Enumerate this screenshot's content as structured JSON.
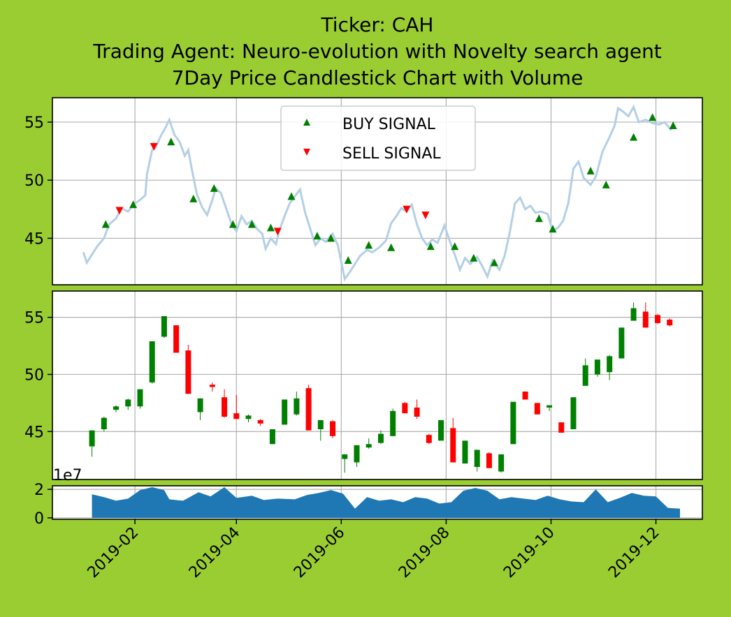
{
  "chart_data": {
    "type": "candlestick",
    "title": [
      "Ticker: CAH",
      "Trading Agent: Neuro-evolution with Novelty search agent",
      "7Day Price Candlestick Chart with Volume"
    ],
    "colors": {
      "background": "#9acd32",
      "price_line": "#b3cfe6",
      "buy": "#008000",
      "sell": "#ff0000",
      "up": "#008000",
      "down": "#ff0000",
      "volume": "#1f77b4"
    },
    "x_axis": {
      "range": [
        "2018-12-15",
        "2019-12-28"
      ],
      "ticks": [
        {
          "date": "2019-02-01",
          "label": "2019-02"
        },
        {
          "date": "2019-04-01",
          "label": "2019-04"
        },
        {
          "date": "2019-06-01",
          "label": "2019-06"
        },
        {
          "date": "2019-08-01",
          "label": "2019-08"
        },
        {
          "date": "2019-10-01",
          "label": "2019-10"
        },
        {
          "date": "2019-12-01",
          "label": "2019-12"
        }
      ]
    },
    "price_panel": {
      "ylim": [
        41,
        57.1
      ],
      "yticks": [
        45,
        50,
        55
      ],
      "legend": {
        "buy": "BUY SIGNAL",
        "sell": "SELL SIGNAL",
        "position": "upper center"
      },
      "line": [
        [
          "2019-01-02",
          43.8
        ],
        [
          "2019-01-04",
          42.9
        ],
        [
          "2019-01-07",
          43.6
        ],
        [
          "2019-01-10",
          44.3
        ],
        [
          "2019-01-14",
          45.0
        ],
        [
          "2019-01-17",
          46.2
        ],
        [
          "2019-01-21",
          46.7
        ],
        [
          "2019-01-24",
          47.6
        ],
        [
          "2019-01-28",
          47.3
        ],
        [
          "2019-01-31",
          47.9
        ],
        [
          "2019-02-04",
          48.3
        ],
        [
          "2019-02-07",
          48.7
        ],
        [
          "2019-02-08",
          50.5
        ],
        [
          "2019-02-11",
          52.6
        ],
        [
          "2019-02-13",
          52.8
        ],
        [
          "2019-02-16",
          53.8
        ],
        [
          "2019-02-19",
          54.6
        ],
        [
          "2019-02-21",
          55.2
        ],
        [
          "2019-02-24",
          53.9
        ],
        [
          "2019-02-27",
          53.3
        ],
        [
          "2019-03-02",
          52.1
        ],
        [
          "2019-03-04",
          52.6
        ],
        [
          "2019-03-06",
          51.0
        ],
        [
          "2019-03-09",
          48.8
        ],
        [
          "2019-03-12",
          47.7
        ],
        [
          "2019-03-15",
          47.0
        ],
        [
          "2019-03-18",
          48.3
        ],
        [
          "2019-03-20",
          49.3
        ],
        [
          "2019-03-23",
          48.9
        ],
        [
          "2019-03-26",
          47.6
        ],
        [
          "2019-03-29",
          46.3
        ],
        [
          "2019-04-01",
          45.6
        ],
        [
          "2019-04-04",
          46.9
        ],
        [
          "2019-04-07",
          46.2
        ],
        [
          "2019-04-10",
          46.5
        ],
        [
          "2019-04-13",
          45.8
        ],
        [
          "2019-04-16",
          45.4
        ],
        [
          "2019-04-18",
          44.1
        ],
        [
          "2019-04-21",
          45.0
        ],
        [
          "2019-04-24",
          44.5
        ],
        [
          "2019-04-26",
          45.7
        ],
        [
          "2019-04-29",
          46.9
        ],
        [
          "2019-05-02",
          48.0
        ],
        [
          "2019-05-05",
          48.6
        ],
        [
          "2019-05-08",
          49.2
        ],
        [
          "2019-05-11",
          47.2
        ],
        [
          "2019-05-14",
          45.8
        ],
        [
          "2019-05-17",
          44.4
        ],
        [
          "2019-05-20",
          45.0
        ],
        [
          "2019-05-23",
          44.7
        ],
        [
          "2019-05-27",
          45.4
        ],
        [
          "2019-05-30",
          44.4
        ],
        [
          "2019-06-03",
          41.5
        ],
        [
          "2019-06-06",
          42.1
        ],
        [
          "2019-06-09",
          42.8
        ],
        [
          "2019-06-12",
          43.5
        ],
        [
          "2019-06-16",
          44.0
        ],
        [
          "2019-06-19",
          43.8
        ],
        [
          "2019-06-23",
          44.2
        ],
        [
          "2019-06-27",
          44.8
        ],
        [
          "2019-06-30",
          46.3
        ],
        [
          "2019-07-03",
          46.9
        ],
        [
          "2019-07-06",
          47.6
        ],
        [
          "2019-07-09",
          47.3
        ],
        [
          "2019-07-12",
          47.9
        ],
        [
          "2019-07-15",
          46.2
        ],
        [
          "2019-07-18",
          45.0
        ],
        [
          "2019-07-21",
          44.4
        ],
        [
          "2019-07-24",
          44.9
        ],
        [
          "2019-07-27",
          44.6
        ],
        [
          "2019-07-31",
          46.1
        ],
        [
          "2019-08-03",
          44.8
        ],
        [
          "2019-08-06",
          43.6
        ],
        [
          "2019-08-09",
          42.3
        ],
        [
          "2019-08-12",
          43.3
        ],
        [
          "2019-08-15",
          42.8
        ],
        [
          "2019-08-19",
          43.4
        ],
        [
          "2019-08-22",
          42.6
        ],
        [
          "2019-08-25",
          41.7
        ],
        [
          "2019-08-28",
          43.1
        ],
        [
          "2019-09-01",
          42.3
        ],
        [
          "2019-09-04",
          43.5
        ],
        [
          "2019-09-07",
          45.5
        ],
        [
          "2019-09-10",
          48.0
        ],
        [
          "2019-09-13",
          48.5
        ],
        [
          "2019-09-16",
          47.5
        ],
        [
          "2019-09-19",
          47.8
        ],
        [
          "2019-09-22",
          47.2
        ],
        [
          "2019-09-25",
          47.3
        ],
        [
          "2019-09-29",
          47.1
        ],
        [
          "2019-10-02",
          45.6
        ],
        [
          "2019-10-05",
          45.9
        ],
        [
          "2019-10-08",
          46.5
        ],
        [
          "2019-10-11",
          48.0
        ],
        [
          "2019-10-14",
          51.0
        ],
        [
          "2019-10-17",
          51.6
        ],
        [
          "2019-10-20",
          50.2
        ],
        [
          "2019-10-24",
          49.6
        ],
        [
          "2019-10-27",
          50.3
        ],
        [
          "2019-10-31",
          52.5
        ],
        [
          "2019-11-04",
          53.7
        ],
        [
          "2019-11-07",
          54.7
        ],
        [
          "2019-11-09",
          56.2
        ],
        [
          "2019-11-12",
          55.9
        ],
        [
          "2019-11-15",
          55.5
        ],
        [
          "2019-11-18",
          56.3
        ],
        [
          "2019-11-21",
          55.0
        ],
        [
          "2019-11-25",
          55.2
        ],
        [
          "2019-11-29",
          54.9
        ],
        [
          "2019-12-03",
          54.8
        ],
        [
          "2019-12-06",
          55.0
        ],
        [
          "2019-12-10",
          54.3
        ]
      ],
      "buy_signals": [
        [
          "2019-01-15",
          46.2
        ],
        [
          "2019-01-31",
          47.9
        ],
        [
          "2019-02-22",
          53.3
        ],
        [
          "2019-03-07",
          48.4
        ],
        [
          "2019-03-19",
          49.3
        ],
        [
          "2019-03-30",
          46.2
        ],
        [
          "2019-04-10",
          46.2
        ],
        [
          "2019-04-21",
          45.9
        ],
        [
          "2019-05-03",
          48.6
        ],
        [
          "2019-05-18",
          45.2
        ],
        [
          "2019-05-26",
          45.0
        ],
        [
          "2019-06-05",
          43.1
        ],
        [
          "2019-06-17",
          44.4
        ],
        [
          "2019-06-30",
          44.2
        ],
        [
          "2019-07-23",
          44.3
        ],
        [
          "2019-08-06",
          44.3
        ],
        [
          "2019-08-17",
          43.3
        ],
        [
          "2019-08-29",
          42.9
        ],
        [
          "2019-09-24",
          46.7
        ],
        [
          "2019-10-02",
          45.8
        ],
        [
          "2019-10-24",
          50.8
        ],
        [
          "2019-11-02",
          49.6
        ],
        [
          "2019-11-18",
          53.7
        ],
        [
          "2019-11-29",
          55.4
        ],
        [
          "2019-12-11",
          54.7
        ]
      ],
      "sell_signals": [
        [
          "2019-01-23",
          47.4
        ],
        [
          "2019-02-12",
          52.9
        ],
        [
          "2019-04-25",
          45.6
        ],
        [
          "2019-07-09",
          47.5
        ],
        [
          "2019-07-20",
          47.0
        ]
      ]
    },
    "candle_panel": {
      "ylim": [
        40.8,
        57.3
      ],
      "yticks": [
        45,
        50,
        55
      ],
      "candles": [
        [
          "2019-01-07",
          43.7,
          45.1,
          42.8,
          45.1
        ],
        [
          "2019-01-14",
          45.2,
          46.3,
          45.0,
          46.2
        ],
        [
          "2019-01-21",
          46.9,
          47.3,
          46.7,
          47.2
        ],
        [
          "2019-01-28",
          47.2,
          47.9,
          46.9,
          47.8
        ],
        [
          "2019-02-04",
          47.2,
          48.7,
          47.0,
          48.7
        ],
        [
          "2019-02-11",
          49.3,
          52.9,
          49.2,
          52.9
        ],
        [
          "2019-02-18",
          53.3,
          55.1,
          53.2,
          55.1
        ],
        [
          "2019-02-25",
          54.3,
          54.3,
          51.9,
          51.9
        ],
        [
          "2019-03-04",
          52.1,
          52.6,
          48.3,
          48.3
        ],
        [
          "2019-03-11",
          46.7,
          47.9,
          46.0,
          47.9
        ],
        [
          "2019-03-18",
          49.1,
          49.3,
          48.5,
          48.9
        ],
        [
          "2019-03-25",
          48.0,
          48.7,
          46.2,
          46.3
        ],
        [
          "2019-04-01",
          46.6,
          48.2,
          46.1,
          46.1
        ],
        [
          "2019-04-08",
          46.1,
          46.5,
          45.8,
          46.4
        ],
        [
          "2019-04-15",
          46.0,
          46.1,
          45.5,
          45.7
        ],
        [
          "2019-04-22",
          43.9,
          45.2,
          43.9,
          45.2
        ],
        [
          "2019-04-29",
          45.6,
          47.8,
          45.6,
          47.8
        ],
        [
          "2019-05-06",
          46.5,
          48.5,
          46.4,
          47.9
        ],
        [
          "2019-05-13",
          48.8,
          49.1,
          45.1,
          45.1
        ],
        [
          "2019-05-20",
          45.2,
          46.0,
          44.2,
          46.0
        ],
        [
          "2019-05-27",
          45.9,
          46.0,
          44.4,
          44.6
        ],
        [
          "2019-06-03",
          42.6,
          43.0,
          41.4,
          43.0
        ],
        [
          "2019-06-10",
          42.3,
          43.8,
          41.9,
          43.8
        ],
        [
          "2019-06-17",
          43.6,
          44.4,
          43.5,
          43.9
        ],
        [
          "2019-06-24",
          44.0,
          45.1,
          43.9,
          44.8
        ],
        [
          "2019-07-01",
          44.6,
          47.0,
          44.6,
          46.8
        ],
        [
          "2019-07-08",
          47.5,
          47.6,
          46.6,
          46.6
        ],
        [
          "2019-07-15",
          47.1,
          47.8,
          46.1,
          46.3
        ],
        [
          "2019-07-22",
          44.7,
          44.8,
          43.9,
          44.0
        ],
        [
          "2019-07-29",
          44.2,
          46.0,
          44.2,
          46.0
        ],
        [
          "2019-08-05",
          45.3,
          46.2,
          42.3,
          42.3
        ],
        [
          "2019-08-12",
          42.2,
          44.2,
          42.2,
          44.2
        ],
        [
          "2019-08-19",
          41.9,
          43.4,
          41.5,
          43.4
        ],
        [
          "2019-08-26",
          43.1,
          43.2,
          41.8,
          41.8
        ],
        [
          "2019-09-02",
          41.5,
          43.0,
          41.4,
          43.0
        ],
        [
          "2019-09-09",
          43.9,
          47.6,
          43.9,
          47.6
        ],
        [
          "2019-09-16",
          48.5,
          48.5,
          47.8,
          47.8
        ],
        [
          "2019-09-23",
          47.5,
          47.5,
          46.5,
          46.5
        ],
        [
          "2019-09-30",
          47.1,
          47.3,
          46.8,
          47.3
        ],
        [
          "2019-10-07",
          45.8,
          45.8,
          44.9,
          44.9
        ],
        [
          "2019-10-14",
          45.2,
          48.0,
          45.2,
          48.0
        ],
        [
          "2019-10-21",
          49.0,
          51.4,
          49.0,
          50.8
        ],
        [
          "2019-10-28",
          50.0,
          51.3,
          49.8,
          51.3
        ],
        [
          "2019-11-04",
          50.2,
          51.7,
          49.5,
          51.6
        ],
        [
          "2019-11-11",
          51.4,
          54.1,
          51.4,
          54.1
        ],
        [
          "2019-11-18",
          54.7,
          56.3,
          54.7,
          55.8
        ],
        [
          "2019-11-25",
          55.5,
          56.3,
          54.1,
          54.1
        ],
        [
          "2019-12-02",
          55.2,
          55.3,
          54.4,
          54.5
        ],
        [
          "2019-12-09",
          54.8,
          54.9,
          54.2,
          54.3
        ]
      ]
    },
    "volume_panel": {
      "exponent_label": "1e7",
      "ylim": [
        -0.1,
        2.25
      ],
      "yticks": [
        0,
        2
      ],
      "series": [
        [
          "2019-01-07",
          1.65
        ],
        [
          "2019-01-14",
          1.45
        ],
        [
          "2019-01-21",
          1.2
        ],
        [
          "2019-01-28",
          1.35
        ],
        [
          "2019-02-04",
          1.95
        ],
        [
          "2019-02-11",
          2.15
        ],
        [
          "2019-02-18",
          1.95
        ],
        [
          "2019-02-21",
          1.3
        ],
        [
          "2019-03-01",
          1.2
        ],
        [
          "2019-03-10",
          1.8
        ],
        [
          "2019-03-17",
          1.5
        ],
        [
          "2019-03-25",
          2.15
        ],
        [
          "2019-04-01",
          1.4
        ],
        [
          "2019-04-10",
          1.55
        ],
        [
          "2019-04-17",
          1.25
        ],
        [
          "2019-04-25",
          1.35
        ],
        [
          "2019-05-05",
          1.3
        ],
        [
          "2019-05-12",
          1.6
        ],
        [
          "2019-05-19",
          1.75
        ],
        [
          "2019-05-26",
          1.95
        ],
        [
          "2019-06-02",
          1.7
        ],
        [
          "2019-06-09",
          0.65
        ],
        [
          "2019-06-16",
          1.45
        ],
        [
          "2019-06-23",
          1.2
        ],
        [
          "2019-06-30",
          1.3
        ],
        [
          "2019-07-07",
          1.1
        ],
        [
          "2019-07-14",
          1.45
        ],
        [
          "2019-07-21",
          1.35
        ],
        [
          "2019-07-28",
          1.0
        ],
        [
          "2019-08-04",
          1.1
        ],
        [
          "2019-08-11",
          1.9
        ],
        [
          "2019-08-18",
          2.1
        ],
        [
          "2019-08-25",
          1.9
        ],
        [
          "2019-09-01",
          1.3
        ],
        [
          "2019-09-08",
          1.45
        ],
        [
          "2019-09-15",
          1.35
        ],
        [
          "2019-09-22",
          1.25
        ],
        [
          "2019-09-29",
          1.55
        ],
        [
          "2019-10-06",
          1.3
        ],
        [
          "2019-10-13",
          1.15
        ],
        [
          "2019-10-20",
          1.1
        ],
        [
          "2019-10-27",
          2.0
        ],
        [
          "2019-11-03",
          1.1
        ],
        [
          "2019-11-10",
          1.4
        ],
        [
          "2019-11-17",
          1.75
        ],
        [
          "2019-11-24",
          1.55
        ],
        [
          "2019-12-01",
          1.5
        ],
        [
          "2019-12-08",
          0.7
        ],
        [
          "2019-12-15",
          0.65
        ]
      ]
    }
  }
}
